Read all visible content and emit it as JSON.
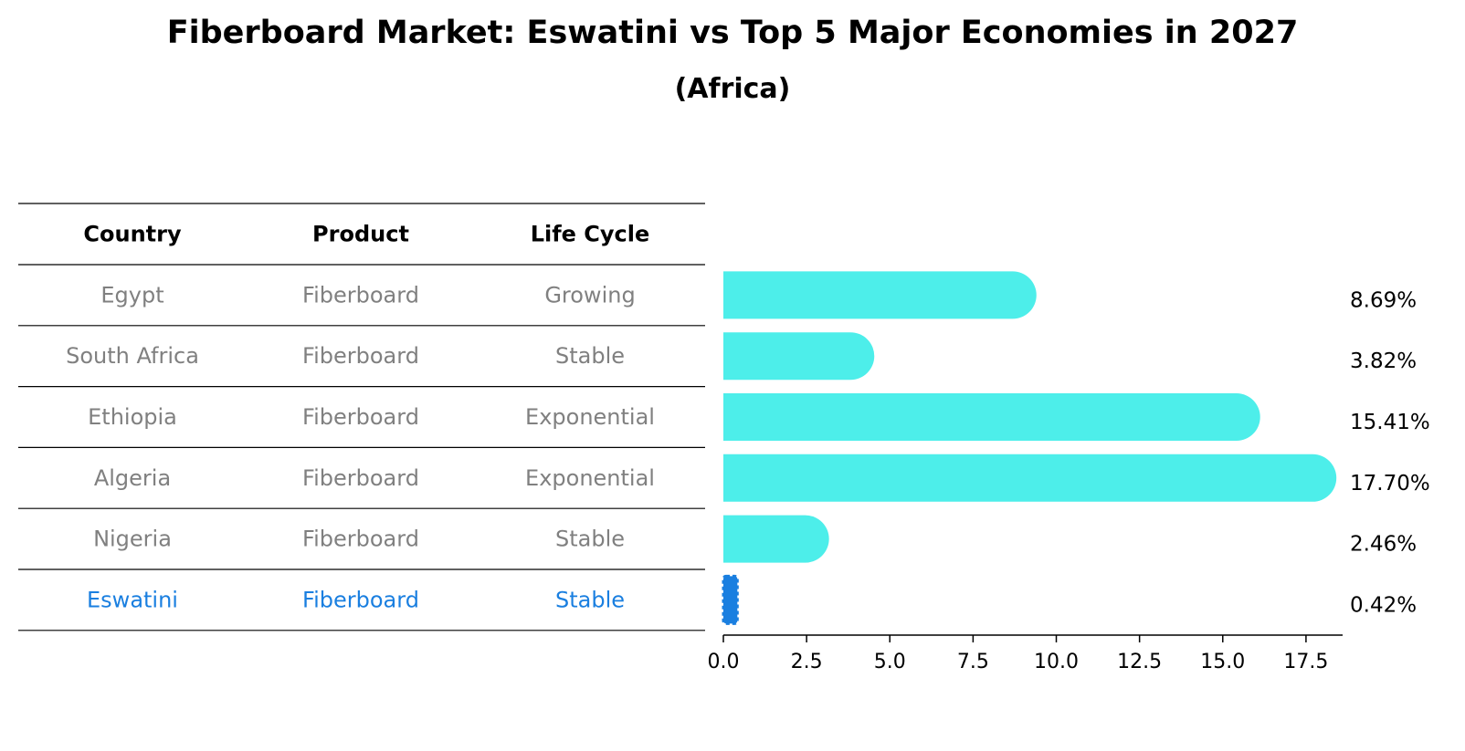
{
  "title": "Fiberboard Market: Eswatini vs Top 5 Major Economies in 2027",
  "subtitle": "(Africa)",
  "table": {
    "headers": [
      "Country",
      "Product",
      "Life Cycle"
    ],
    "rows": [
      [
        "Egypt",
        "Fiberboard",
        "Growing"
      ],
      [
        "South Africa",
        "Fiberboard",
        "Stable"
      ],
      [
        "Ethiopia",
        "Fiberboard",
        "Exponential"
      ],
      [
        "Algeria",
        "Fiberboard",
        "Exponential"
      ],
      [
        "Nigeria",
        "Fiberboard",
        "Stable"
      ],
      [
        "Eswatini",
        "Fiberboard",
        "Stable"
      ]
    ],
    "highlight_row": 5
  },
  "colors": {
    "bar": "#4deeea",
    "highlight": "#1a7fe0",
    "text_muted": "#808080"
  },
  "chart_data": {
    "type": "bar",
    "orientation": "horizontal",
    "categories": [
      "Egypt",
      "South Africa",
      "Ethiopia",
      "Algeria",
      "Nigeria",
      "Eswatini"
    ],
    "values": [
      8.69,
      3.82,
      15.41,
      17.7,
      2.46,
      0.42
    ],
    "value_labels": [
      "8.69%",
      "3.82%",
      "15.41%",
      "17.70%",
      "2.46%",
      "0.42%"
    ],
    "xticks": [
      "0.0",
      "2.5",
      "5.0",
      "7.5",
      "10.0",
      "12.5",
      "15.0",
      "17.5"
    ],
    "xlim": [
      0,
      18.6
    ],
    "grid": false
  }
}
